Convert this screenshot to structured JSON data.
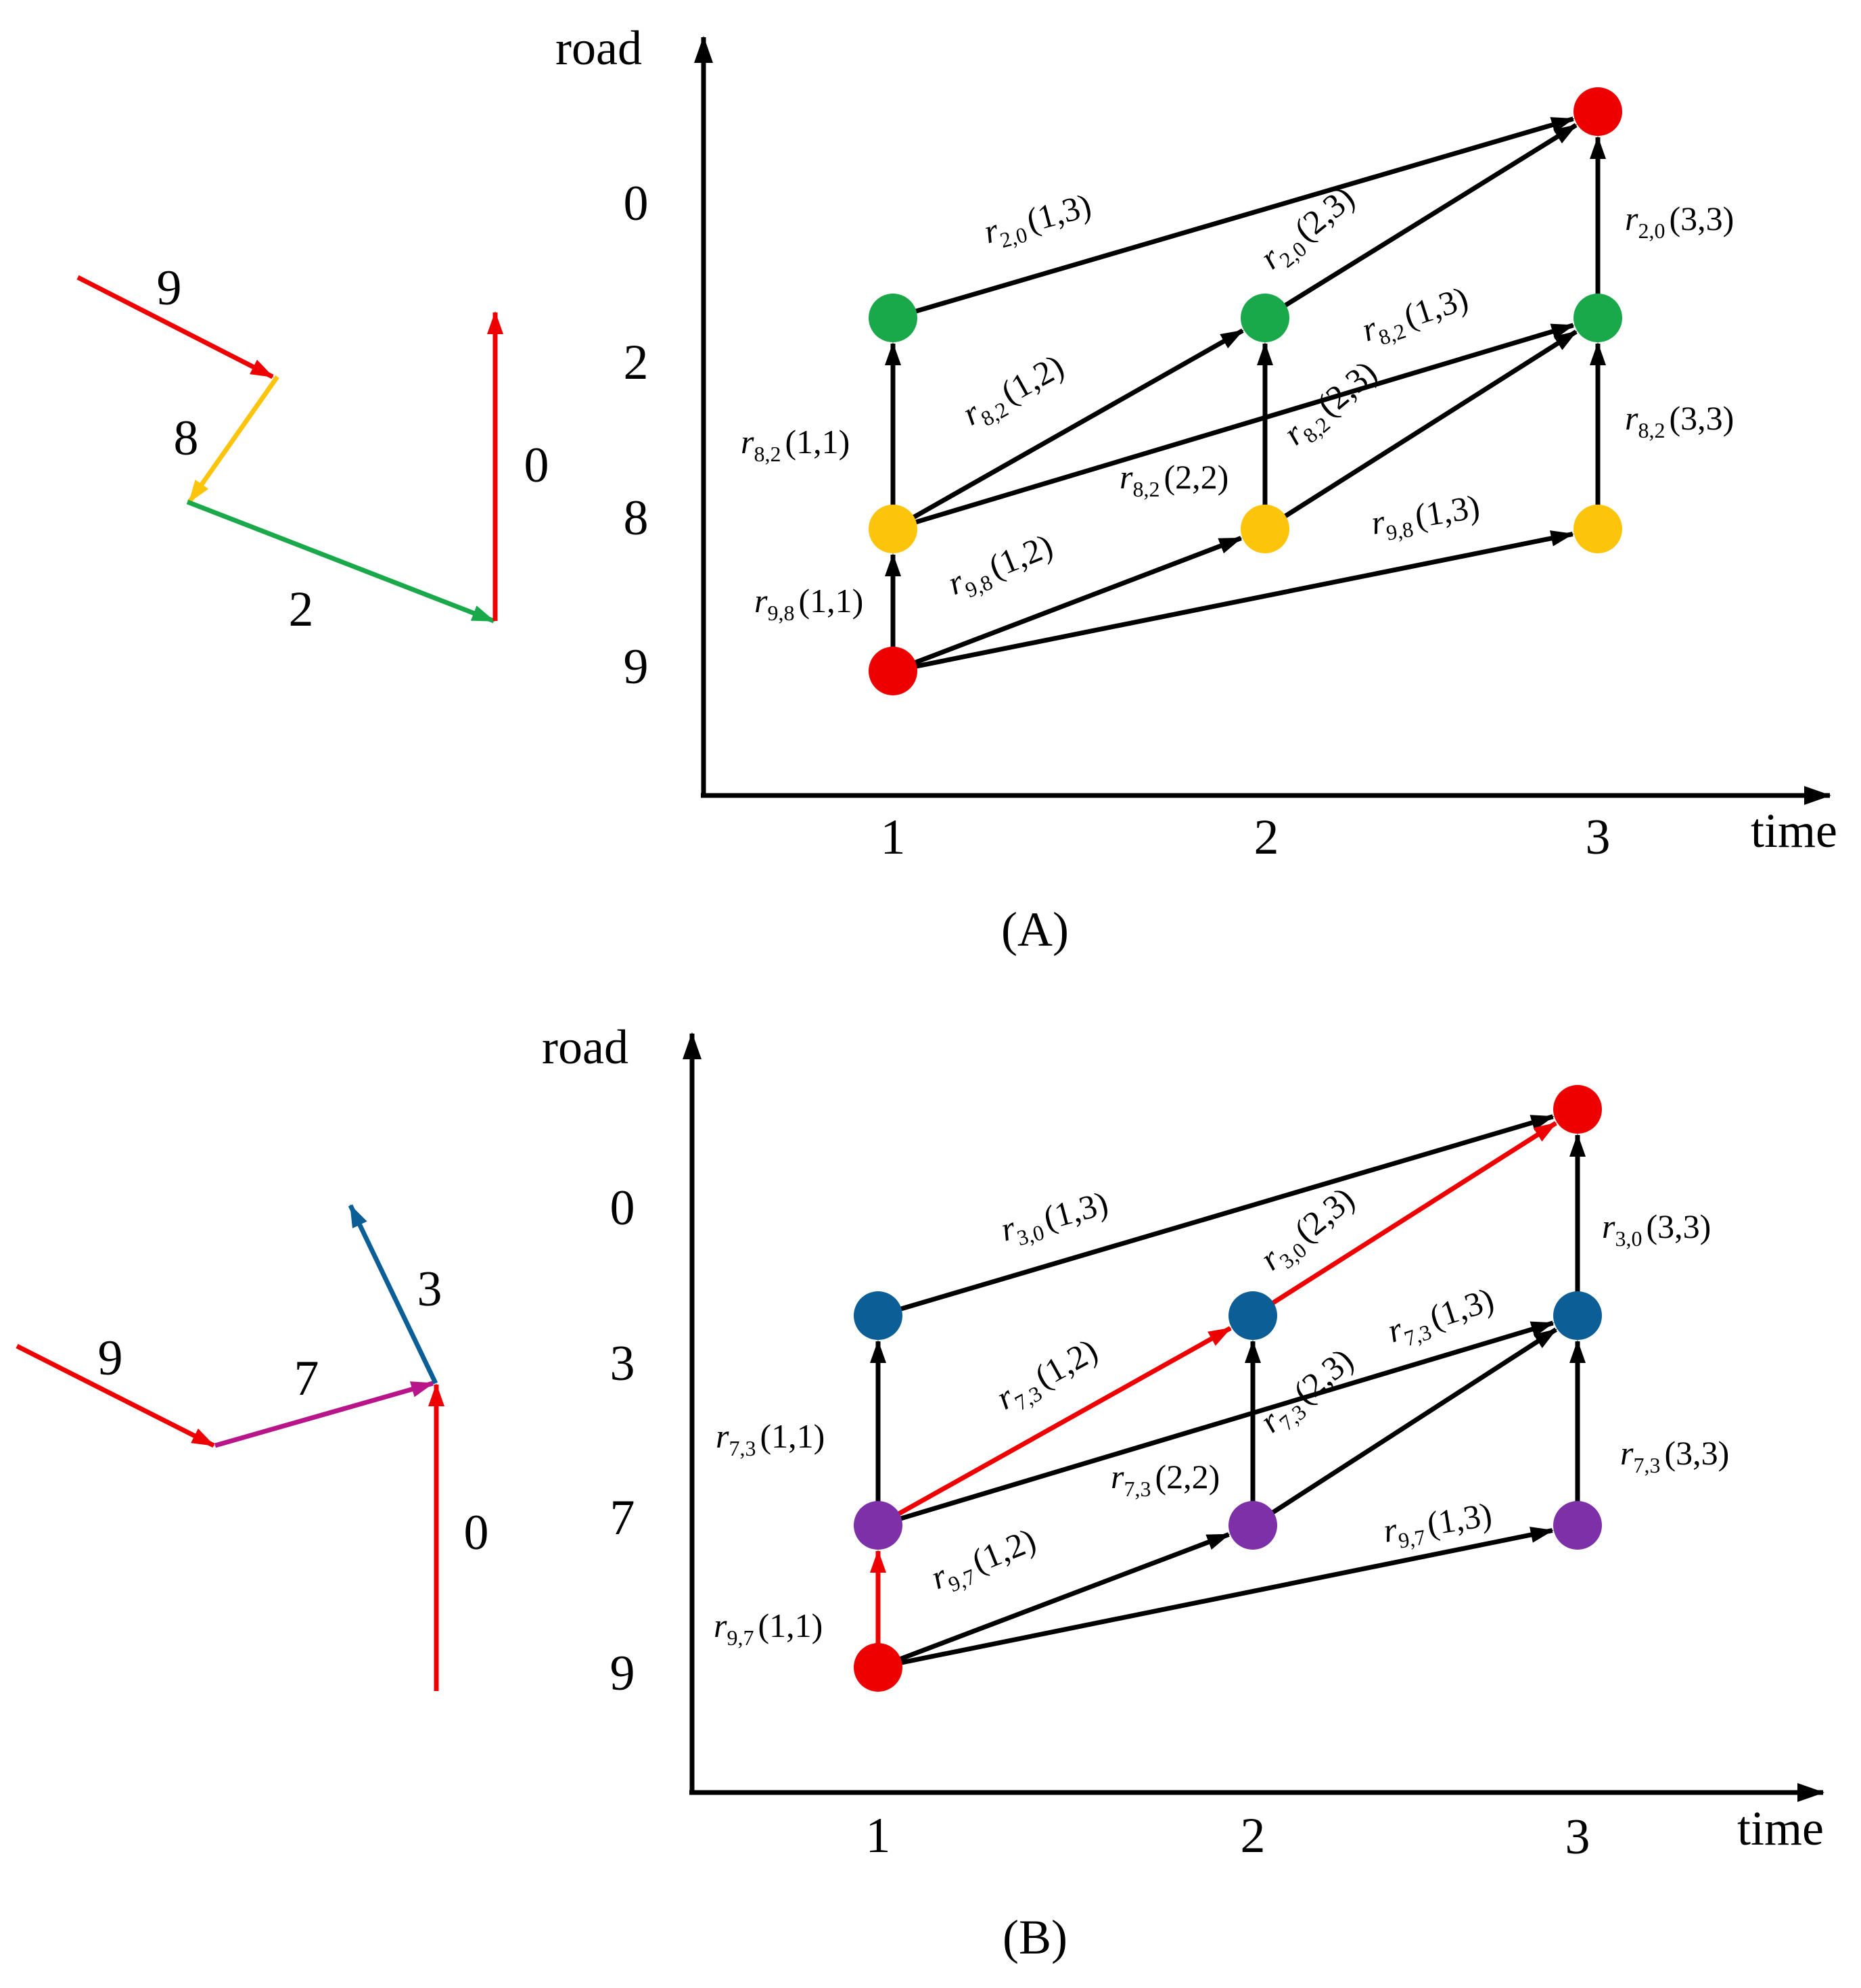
{
  "colors": {
    "red": "#ee0000",
    "yellow": "#fcc40a",
    "green": "#19a84a",
    "blue": "#0b5f96",
    "magenta": "#b8158a",
    "purple": "#7d30a8",
    "black": "#000000"
  },
  "panels": [
    {
      "caption": "(A)",
      "route": {
        "segments": [
          {
            "label": "9",
            "color": "red"
          },
          {
            "label": "8",
            "color": "yellow"
          },
          {
            "label": "2",
            "color": "green"
          },
          {
            "label": "0",
            "color": "red"
          }
        ]
      },
      "graph": {
        "y_axis_label": "road",
        "x_axis_label": "time",
        "time_ticks": [
          "1",
          "2",
          "3"
        ],
        "road_ticks": [
          "0",
          "2",
          "8",
          "9"
        ],
        "nodes": [
          {
            "id": "9@1",
            "road": "9",
            "time": "1",
            "color": "red"
          },
          {
            "id": "8@1",
            "road": "8",
            "time": "1",
            "color": "yellow"
          },
          {
            "id": "2@1",
            "road": "2",
            "time": "1",
            "color": "green"
          },
          {
            "id": "8@2",
            "road": "8",
            "time": "2",
            "color": "yellow"
          },
          {
            "id": "2@2",
            "road": "2",
            "time": "2",
            "color": "green"
          },
          {
            "id": "8@3",
            "road": "8",
            "time": "3",
            "color": "yellow"
          },
          {
            "id": "2@3",
            "road": "2",
            "time": "3",
            "color": "green"
          },
          {
            "id": "0@3",
            "road": "0",
            "time": "3",
            "color": "red"
          }
        ],
        "edges": [
          {
            "from": "9@1",
            "to": "8@1",
            "sub": "9,8",
            "args": "(1,1)",
            "color": "black"
          },
          {
            "from": "9@1",
            "to": "8@2",
            "sub": "9,8",
            "args": "(1,2)",
            "color": "black"
          },
          {
            "from": "9@1",
            "to": "8@3",
            "sub": "9,8",
            "args": "(1,3)",
            "color": "black"
          },
          {
            "from": "8@1",
            "to": "2@1",
            "sub": "8,2",
            "args": "(1,1)",
            "color": "black"
          },
          {
            "from": "8@1",
            "to": "2@2",
            "sub": "8,2",
            "args": "(1,2)",
            "color": "black"
          },
          {
            "from": "8@1",
            "to": "2@3",
            "sub": "8,2",
            "args": "(1,3)",
            "color": "black"
          },
          {
            "from": "8@2",
            "to": "2@2",
            "sub": "8,2",
            "args": "(2,2)",
            "color": "black"
          },
          {
            "from": "8@2",
            "to": "2@3",
            "sub": "8,2",
            "args": "(2,3)",
            "color": "black"
          },
          {
            "from": "8@3",
            "to": "2@3",
            "sub": "8,2",
            "args": "(3,3)",
            "color": "black"
          },
          {
            "from": "2@1",
            "to": "0@3",
            "sub": "2,0",
            "args": "(1,3)",
            "color": "black"
          },
          {
            "from": "2@2",
            "to": "0@3",
            "sub": "2,0",
            "args": "(2,3)",
            "color": "black"
          },
          {
            "from": "2@3",
            "to": "0@3",
            "sub": "2,0",
            "args": "(3,3)",
            "color": "black"
          }
        ]
      }
    },
    {
      "caption": "(B)",
      "route": {
        "segments": [
          {
            "label": "9",
            "color": "red"
          },
          {
            "label": "7",
            "color": "magenta"
          },
          {
            "label": "3",
            "color": "blue"
          },
          {
            "label": "0",
            "color": "red"
          }
        ]
      },
      "graph": {
        "y_axis_label": "road",
        "x_axis_label": "time",
        "time_ticks": [
          "1",
          "2",
          "3"
        ],
        "road_ticks": [
          "0",
          "3",
          "7",
          "9"
        ],
        "nodes": [
          {
            "id": "9@1",
            "road": "9",
            "time": "1",
            "color": "red"
          },
          {
            "id": "7@1",
            "road": "7",
            "time": "1",
            "color": "purple"
          },
          {
            "id": "3@1",
            "road": "3",
            "time": "1",
            "color": "blue"
          },
          {
            "id": "7@2",
            "road": "7",
            "time": "2",
            "color": "purple"
          },
          {
            "id": "3@2",
            "road": "3",
            "time": "2",
            "color": "blue"
          },
          {
            "id": "7@3",
            "road": "7",
            "time": "3",
            "color": "purple"
          },
          {
            "id": "3@3",
            "road": "3",
            "time": "3",
            "color": "blue"
          },
          {
            "id": "0@3",
            "road": "0",
            "time": "3",
            "color": "red"
          }
        ],
        "edges": [
          {
            "from": "9@1",
            "to": "7@1",
            "sub": "9,7",
            "args": "(1,1)",
            "color": "red"
          },
          {
            "from": "9@1",
            "to": "7@2",
            "sub": "9,7",
            "args": "(1,2)",
            "color": "black"
          },
          {
            "from": "9@1",
            "to": "7@3",
            "sub": "9,7",
            "args": "(1,3)",
            "color": "black"
          },
          {
            "from": "7@1",
            "to": "3@1",
            "sub": "7,3",
            "args": "(1,1)",
            "color": "black"
          },
          {
            "from": "7@1",
            "to": "3@2",
            "sub": "7,3",
            "args": "(1,2)",
            "color": "red"
          },
          {
            "from": "7@1",
            "to": "3@3",
            "sub": "7,3",
            "args": "(1,3)",
            "color": "black"
          },
          {
            "from": "7@2",
            "to": "3@2",
            "sub": "7,3",
            "args": "(2,2)",
            "color": "black"
          },
          {
            "from": "7@2",
            "to": "3@3",
            "sub": "7,3",
            "args": "(2,3)",
            "color": "black"
          },
          {
            "from": "7@3",
            "to": "3@3",
            "sub": "7,3",
            "args": "(3,3)",
            "color": "black"
          },
          {
            "from": "3@1",
            "to": "0@3",
            "sub": "3,0",
            "args": "(1,3)",
            "color": "black"
          },
          {
            "from": "3@2",
            "to": "0@3",
            "sub": "3,0",
            "args": "(2,3)",
            "color": "red"
          },
          {
            "from": "3@3",
            "to": "0@3",
            "sub": "3,0",
            "args": "(3,3)",
            "color": "black"
          }
        ]
      }
    }
  ]
}
